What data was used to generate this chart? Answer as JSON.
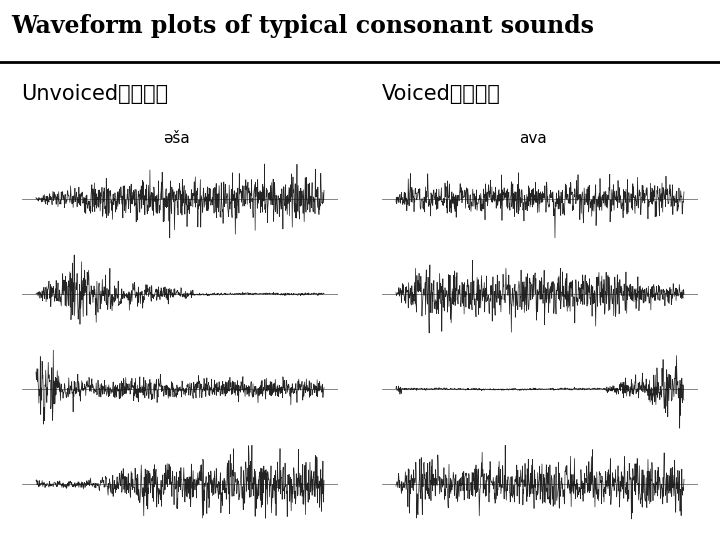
{
  "title": "Waveform plots of typical consonant sounds",
  "title_fontsize": 17,
  "title_fontweight": "bold",
  "unvoiced_label": "Unvoiced（清音）",
  "voiced_label": "Voiced（濁音）",
  "unvoiced_phoneme": "əša",
  "voiced_phoneme": "ava",
  "label_fontsize": 15,
  "phoneme_fontsize": 11,
  "background": "#ffffff",
  "waveform_color": "#111111",
  "n_samples": 800,
  "seed": 7
}
